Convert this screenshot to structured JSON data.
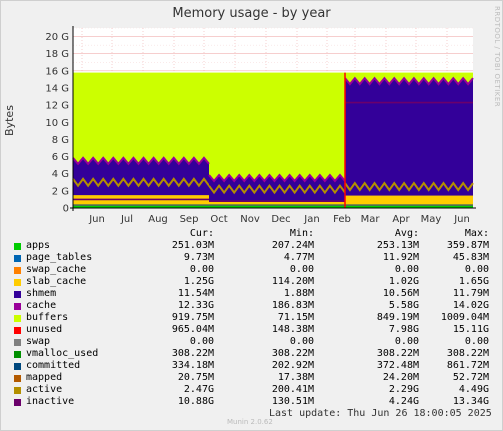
{
  "chart_data": {
    "type": "area",
    "title": "Memory usage - by year",
    "ylabel": "Bytes",
    "y_ticks": [
      "0",
      "2 G",
      "4 G",
      "6 G",
      "8 G",
      "10 G",
      "12 G",
      "14 G",
      "16 G",
      "18 G",
      "20 G"
    ],
    "y_unit_values": [
      0,
      2,
      4,
      6,
      8,
      10,
      12,
      14,
      16,
      18,
      20
    ],
    "ylim": [
      0,
      21
    ],
    "x_ticks": [
      "Jun",
      "Jul",
      "Aug",
      "Sep",
      "Oct",
      "Nov",
      "Dec",
      "Jan",
      "Feb",
      "Mar",
      "Apr",
      "May",
      "Jun"
    ],
    "grid": true,
    "series_approx_G": {
      "unused_total_top": 15.8,
      "period_1": {
        "apps": 0.25,
        "slab_cache": 1.25,
        "active": 3.0,
        "buffers": 5.5,
        "inactive": 1.0
      },
      "period_2": {
        "apps": 0.25,
        "slab_cache": 0.5,
        "active": 2.2,
        "buffers": 3.5,
        "inactive": 0.8
      },
      "period_3": {
        "apps": 0.25,
        "slab_cache": 1.2,
        "active": 2.5,
        "buffers": 14.8,
        "inactive": 12.3
      }
    }
  },
  "side_text": "RRDTOOL / TOBI OETIKER",
  "legend": {
    "headers": [
      "Cur:",
      "Min:",
      "Avg:",
      "Max:"
    ],
    "rows": [
      {
        "name": "apps",
        "color": "#00cc00",
        "cur": "251.03M",
        "min": "207.24M",
        "avg": "253.13M",
        "max": "359.87M"
      },
      {
        "name": "page_tables",
        "color": "#0066b3",
        "cur": "9.73M",
        "min": "4.77M",
        "avg": "11.92M",
        "max": "45.83M"
      },
      {
        "name": "swap_cache",
        "color": "#ff8000",
        "cur": "0.00",
        "min": "0.00",
        "avg": "0.00",
        "max": "0.00"
      },
      {
        "name": "slab_cache",
        "color": "#ffcc00",
        "cur": "1.25G",
        "min": "114.20M",
        "avg": "1.02G",
        "max": "1.65G"
      },
      {
        "name": "shmem",
        "color": "#330099",
        "cur": "11.54M",
        "min": "1.88M",
        "avg": "10.56M",
        "max": "11.79M"
      },
      {
        "name": "cache",
        "color": "#990099",
        "cur": "12.33G",
        "min": "186.83M",
        "avg": "5.58G",
        "max": "14.02G"
      },
      {
        "name": "buffers",
        "color": "#ccff00",
        "cur": "919.75M",
        "min": "71.15M",
        "avg": "849.19M",
        "max": "1009.04M"
      },
      {
        "name": "unused",
        "color": "#ff0000",
        "cur": "965.04M",
        "min": "148.38M",
        "avg": "7.98G",
        "max": "15.11G"
      },
      {
        "name": "swap",
        "color": "#808080",
        "cur": "0.00",
        "min": "0.00",
        "avg": "0.00",
        "max": "0.00"
      },
      {
        "name": "vmalloc_used",
        "color": "#008f00",
        "cur": "308.22M",
        "min": "308.22M",
        "avg": "308.22M",
        "max": "308.22M"
      },
      {
        "name": "committed",
        "color": "#00487d",
        "cur": "334.18M",
        "min": "202.92M",
        "avg": "372.48M",
        "max": "861.72M"
      },
      {
        "name": "mapped",
        "color": "#b35a00",
        "cur": "20.75M",
        "min": "17.38M",
        "avg": "24.20M",
        "max": "52.72M"
      },
      {
        "name": "active",
        "color": "#b38f00",
        "cur": "2.47G",
        "min": "200.41M",
        "avg": "2.29G",
        "max": "4.49G"
      },
      {
        "name": "inactive",
        "color": "#6b006b",
        "cur": "10.88G",
        "min": "130.51M",
        "avg": "4.24G",
        "max": "13.34G"
      }
    ]
  },
  "last_update": "Last update: Thu Jun 26 18:00:05 2025",
  "footer": "Munin 2.0.62"
}
